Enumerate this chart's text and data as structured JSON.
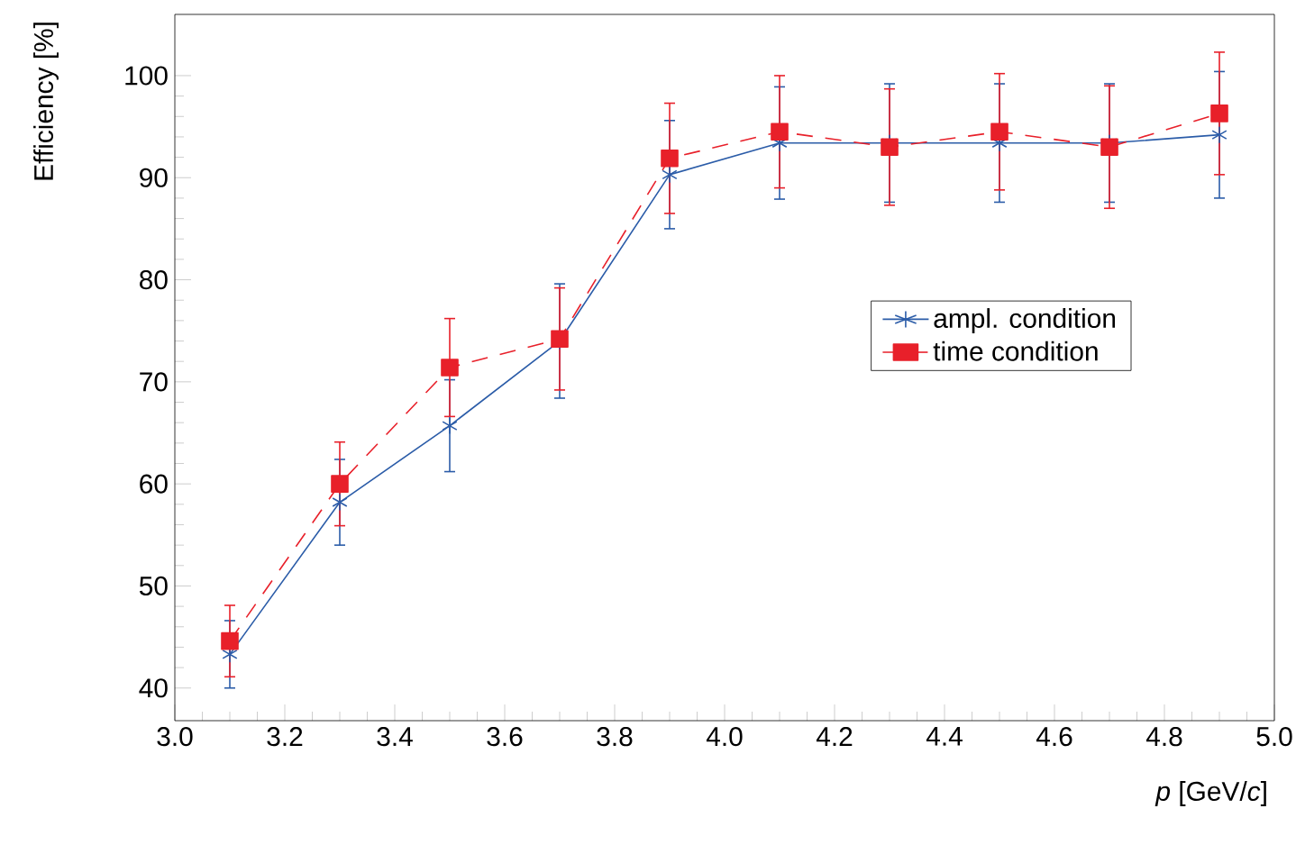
{
  "chart_data": {
    "type": "line",
    "xlabel": "*p* [GeV/*c*]",
    "ylabel": "Efficiency [%]",
    "x": [
      3.1,
      3.3,
      3.5,
      3.7,
      3.9,
      4.1,
      4.3,
      4.5,
      4.7,
      4.9
    ],
    "series": [
      {
        "name": "ampl. condition",
        "color": "#2b5ca8",
        "marker": "cross",
        "line_style": "solid",
        "values": [
          43.3,
          58.2,
          65.7,
          74.0,
          90.3,
          93.4,
          93.4,
          93.4,
          93.4,
          94.2
        ],
        "errors": [
          3.3,
          4.2,
          4.5,
          5.6,
          5.3,
          5.5,
          5.8,
          5.8,
          5.8,
          6.2
        ]
      },
      {
        "name": "time condition",
        "color": "#e8202a",
        "marker": "square",
        "line_style": "dashed",
        "values": [
          44.6,
          60.0,
          71.4,
          74.2,
          91.9,
          94.5,
          93.0,
          94.5,
          93.0,
          96.3
        ],
        "errors": [
          3.5,
          4.1,
          4.8,
          5,
          5.4,
          5.5,
          5.7,
          5.7,
          6,
          6
        ]
      }
    ],
    "xlim": [
      3.0,
      5.0
    ],
    "ylim": [
      36.8,
      106
    ],
    "xticks": [
      {
        "value": 3.0,
        "label": "3.0"
      },
      {
        "value": 3.2,
        "label": "3.2"
      },
      {
        "value": 3.4,
        "label": "3.4"
      },
      {
        "value": 3.6,
        "label": "3.6"
      },
      {
        "value": 3.8,
        "label": "3.8"
      },
      {
        "value": 4.0,
        "label": "4.0"
      },
      {
        "value": 4.2,
        "label": "4.2"
      },
      {
        "value": 4.4,
        "label": "4.4"
      },
      {
        "value": 4.6,
        "label": "4.6"
      },
      {
        "value": 4.8,
        "label": "4.8"
      },
      {
        "value": 5.0,
        "label": "5.0"
      }
    ],
    "yticks": [
      40,
      50,
      60,
      70,
      80,
      90,
      100
    ],
    "grid": false,
    "legend": "right"
  }
}
